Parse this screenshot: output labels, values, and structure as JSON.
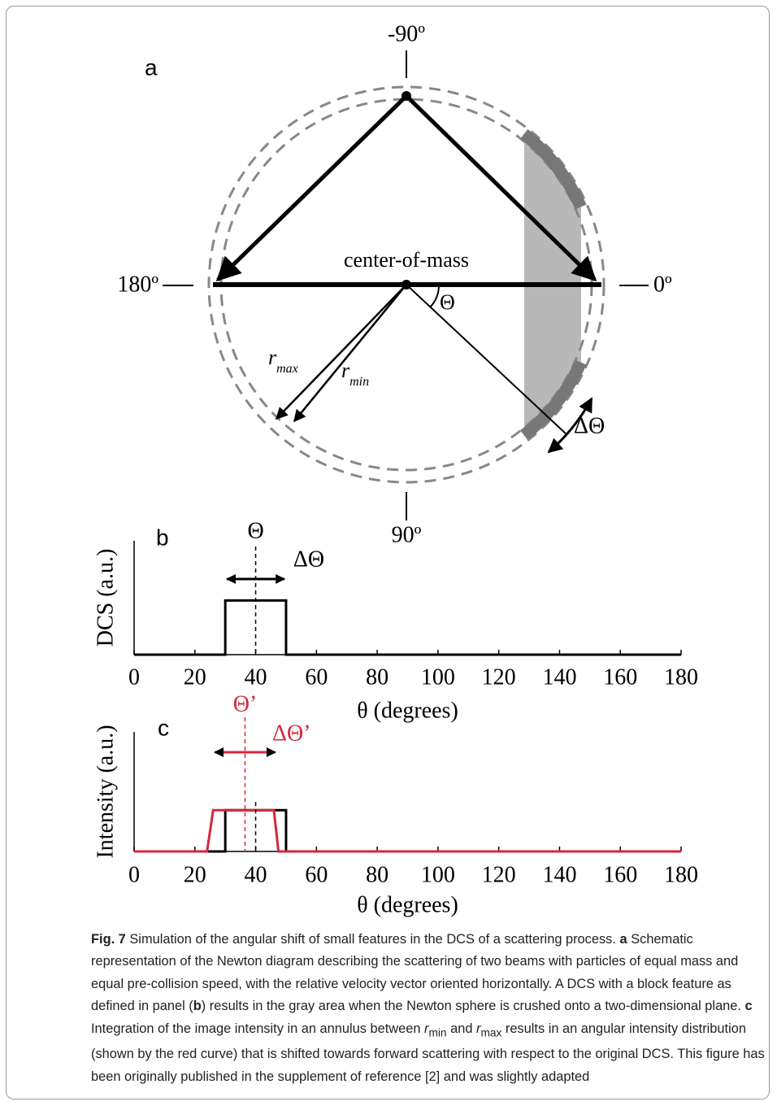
{
  "panel_a": {
    "panel_label": "a",
    "angle_labels": [
      "-90º",
      "180º",
      "0º",
      "90º"
    ],
    "center_label": "center-of-mass",
    "theta": "Θ",
    "r_max": {
      "symbol": "r",
      "subscript": "max"
    },
    "r_min": {
      "symbol": "r",
      "subscript": "min"
    },
    "delta_theta": "ΔΘ"
  },
  "chart_data": [
    {
      "type": "line",
      "panel_label": "b",
      "xlabel": "θ (degrees)",
      "ylabel": "DCS (a.u.)",
      "xlim": [
        0,
        180
      ],
      "xticks": [
        0,
        20,
        40,
        60,
        80,
        100,
        120,
        140,
        160,
        180
      ],
      "ylim": [
        0,
        2.1
      ],
      "series": [
        {
          "color": "#000000",
          "x": [
            0,
            30,
            30,
            50,
            50,
            180
          ],
          "values": [
            0,
            0,
            1,
            1,
            0,
            0
          ]
        }
      ],
      "markers": [
        {
          "label": "Θ",
          "x": 40,
          "color": "#000000"
        }
      ],
      "ranges": [
        {
          "label": "ΔΘ",
          "x": [
            30,
            50
          ],
          "color": "#000000"
        }
      ]
    },
    {
      "type": "line",
      "panel_label": "c",
      "xlabel": "θ (degrees)",
      "ylabel": "Intensity (a.u.)",
      "xlim": [
        0,
        180
      ],
      "xticks": [
        0,
        20,
        40,
        60,
        80,
        100,
        120,
        140,
        160,
        180
      ],
      "ylim": [
        0,
        2.9
      ],
      "series": [
        {
          "color": "#000000",
          "x": [
            0,
            30,
            30,
            50,
            50,
            180
          ],
          "values": [
            0,
            0,
            1,
            1,
            0,
            0
          ]
        },
        {
          "color": "#d7263d",
          "x": [
            0,
            24,
            26,
            46,
            47.5,
            180
          ],
          "values": [
            0,
            0,
            1,
            1,
            0,
            0
          ]
        }
      ],
      "markers": [
        {
          "x": 40,
          "color": "#000000"
        },
        {
          "label": "Θ’",
          "x": 36.5,
          "color": "#d7263d"
        }
      ],
      "ranges": [
        {
          "label": "ΔΘ’",
          "x": [
            26,
            47
          ],
          "color": "#d7263d"
        }
      ]
    }
  ],
  "caption": {
    "parts": [
      "Fig. 7",
      "Simulation of the angular shift of small features in the DCS of a scattering process.",
      "a",
      "Schematic representation of the Newton diagram describing the scattering of two beams with particles of equal mass and equal pre-collision speed, with the relative velocity vector oriented horizontally. A DCS with a block feature as defined in panel (",
      "b",
      ") results in the gray area when the Newton sphere is crushed onto a two-dimensional plane.",
      "c",
      "Integration of the image intensity in an annulus between",
      "r",
      "min",
      "and",
      "r",
      "max",
      "results in an angular intensity distribution (shown by the red curve) that is shifted towards forward scattering with respect to the original DCS. This figure has been originally published in the supplement of reference [2] and was slightly adapted"
    ]
  }
}
